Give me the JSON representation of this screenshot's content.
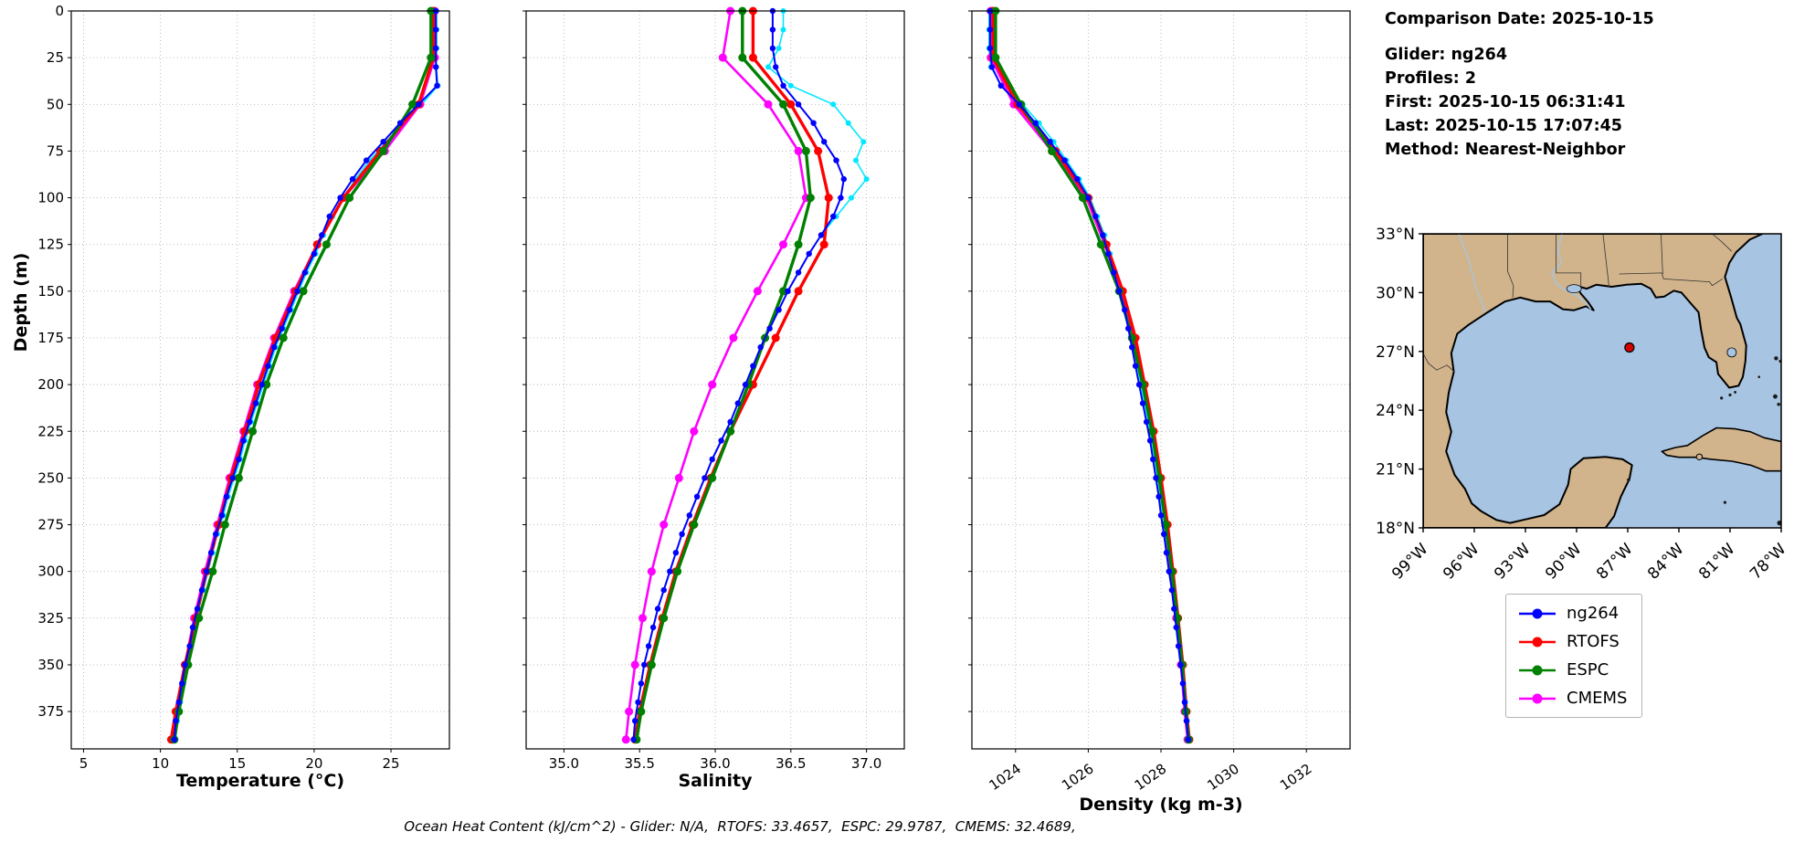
{
  "info": {
    "lines": [
      "Comparison Date: 2025-10-15",
      "Glider: ng264",
      "Profiles: 2",
      "First: 2025-10-15 06:31:41",
      "Last: 2025-10-15 17:07:45",
      "Method: Nearest-Neighbor"
    ]
  },
  "footer": {
    "caption": "Ocean Heat Content (kJ/cm^2) - Glider: N/A,  RTOFS: 33.4657,  ESPC: 29.9787,  CMEMS: 32.4689,"
  },
  "legend": {
    "items": [
      {
        "label": "ng264",
        "color": "#0000ff"
      },
      {
        "label": "RTOFS",
        "color": "#ff0000"
      },
      {
        "label": "ESPC",
        "color": "#008000"
      },
      {
        "label": "CMEMS",
        "color": "#ff00ff"
      }
    ]
  },
  "map": {
    "land_color": "#d2b48c",
    "ocean_color": "#a7c4e2",
    "river_color": "#9ec8e8",
    "lat_ticks": [
      {
        "v": 33,
        "label": "33°N"
      },
      {
        "v": 30,
        "label": "30°N"
      },
      {
        "v": 27,
        "label": "27°N"
      },
      {
        "v": 24,
        "label": "24°N"
      },
      {
        "v": 21,
        "label": "21°N"
      },
      {
        "v": 18,
        "label": "18°N"
      }
    ],
    "lon_ticks": [
      {
        "v": 99,
        "label": "99°W"
      },
      {
        "v": 96,
        "label": "96°W"
      },
      {
        "v": 93,
        "label": "93°W"
      },
      {
        "v": 90,
        "label": "90°W"
      },
      {
        "v": 87,
        "label": "87°W"
      },
      {
        "v": 84,
        "label": "84°W"
      },
      {
        "v": 81,
        "label": "81°W"
      },
      {
        "v": 78,
        "label": "78°W"
      }
    ],
    "marker": {
      "lon_w": 86.9,
      "lat": 27.2,
      "fill": "#d40000",
      "edge": "#000000"
    }
  },
  "chart_data": {
    "type": "line",
    "title": "",
    "ylabel": "Depth (m)",
    "ylim": [
      0,
      395
    ],
    "yticks": [
      0,
      25,
      50,
      75,
      100,
      125,
      150,
      175,
      200,
      225,
      250,
      275,
      300,
      325,
      350,
      375
    ],
    "grid": true,
    "panels": [
      {
        "key": "temperature",
        "xlabel": "Temperature (°C)",
        "xlim": [
          4.2,
          28.8
        ],
        "xticks": [
          5,
          10,
          15,
          20,
          25
        ],
        "xtick_labels": [
          "5",
          "10",
          "15",
          "20",
          "25"
        ],
        "rotate_ticks": false
      },
      {
        "key": "salinity",
        "xlabel": "Salinity",
        "xlim": [
          34.75,
          37.25
        ],
        "xticks": [
          35.0,
          35.5,
          36.0,
          36.5,
          37.0
        ],
        "xtick_labels": [
          "35.0",
          "35.5",
          "36.0",
          "36.5",
          "37.0"
        ],
        "rotate_ticks": false
      },
      {
        "key": "density",
        "xlabel": "Density (kg m-3)",
        "xlim": [
          1022.8,
          1033.2
        ],
        "xticks": [
          1024,
          1026,
          1028,
          1030,
          1032
        ],
        "xtick_labels": [
          "1024",
          "1026",
          "1028",
          "1030",
          "1032"
        ],
        "rotate_ticks": true
      }
    ],
    "series": [
      {
        "id": "ng264p2",
        "name": "ng264 (second profile)",
        "color": "#00e8ff",
        "line_width": 1.6,
        "marker_radius": 3.0,
        "depths": [
          0,
          10,
          20,
          30,
          40,
          50,
          60,
          70,
          80,
          90,
          100,
          110,
          120,
          130,
          140,
          150,
          160,
          170,
          180,
          190,
          200,
          210,
          220,
          230,
          240,
          250,
          260,
          270,
          280,
          290,
          300,
          310,
          320,
          330,
          340,
          350,
          360,
          370,
          380,
          390
        ],
        "temperature": [
          27.97,
          27.97,
          27.97,
          27.95,
          28.05,
          27.0,
          25.8,
          24.7,
          23.6,
          22.7,
          21.9,
          21.2,
          20.6,
          20.1,
          19.5,
          19.0,
          18.5,
          18.0,
          17.5,
          17.1,
          16.7,
          16.3,
          15.9,
          15.5,
          15.2,
          14.8,
          14.4,
          14.1,
          13.7,
          13.4,
          13.1,
          12.8,
          12.5,
          12.2,
          12.0,
          11.7,
          11.5,
          11.3,
          11.1,
          11.0
        ],
        "salinity": [
          36.45,
          36.45,
          36.42,
          36.35,
          36.5,
          36.78,
          36.88,
          36.98,
          36.93,
          37.0,
          36.9,
          36.8,
          36.7,
          36.62,
          36.55,
          36.48,
          36.42,
          36.36,
          36.3,
          36.25,
          36.2,
          36.15,
          36.1,
          36.04,
          35.98,
          35.93,
          35.88,
          35.83,
          35.78,
          35.74,
          35.7,
          35.66,
          35.62,
          35.59,
          35.56,
          35.53,
          35.51,
          35.49,
          35.47,
          35.46
        ],
        "density": [
          1023.27,
          1023.27,
          1023.27,
          1023.32,
          1023.62,
          1024.2,
          1024.65,
          1025.05,
          1025.4,
          1025.75,
          1026.05,
          1026.25,
          1026.45,
          1026.6,
          1026.75,
          1026.9,
          1027.05,
          1027.15,
          1027.25,
          1027.35,
          1027.45,
          1027.55,
          1027.65,
          1027.72,
          1027.8,
          1027.88,
          1027.96,
          1028.02,
          1028.1,
          1028.17,
          1028.24,
          1028.32,
          1028.38,
          1028.44,
          1028.5,
          1028.56,
          1028.62,
          1028.67,
          1028.72,
          1028.77
        ]
      },
      {
        "id": "cmems",
        "name": "CMEMS",
        "color": "#ff00ff",
        "line_width": 2.6,
        "marker_radius": 4.5,
        "depths": [
          0,
          25,
          50,
          75,
          100,
          125,
          150,
          175,
          200,
          225,
          250,
          275,
          300,
          325,
          350,
          375,
          390
        ],
        "temperature": [
          27.85,
          27.85,
          26.9,
          24.6,
          21.9,
          20.2,
          18.7,
          17.4,
          16.3,
          15.4,
          14.5,
          13.7,
          12.9,
          12.2,
          11.6,
          11.1,
          10.8
        ],
        "salinity": [
          36.1,
          36.05,
          36.35,
          36.55,
          36.6,
          36.45,
          36.28,
          36.12,
          35.98,
          35.86,
          35.76,
          35.66,
          35.58,
          35.52,
          35.47,
          35.43,
          35.41
        ],
        "density": [
          1023.32,
          1023.32,
          1023.95,
          1025.0,
          1025.95,
          1026.45,
          1026.9,
          1027.25,
          1027.5,
          1027.75,
          1027.95,
          1028.12,
          1028.27,
          1028.42,
          1028.55,
          1028.65,
          1028.73
        ]
      },
      {
        "id": "rtofs",
        "name": "RTOFS",
        "color": "#ff0000",
        "line_width": 3.4,
        "marker_radius": 4.5,
        "depths": [
          0,
          25,
          50,
          75,
          100,
          125,
          150,
          175,
          200,
          225,
          250,
          275,
          300,
          325,
          350,
          375,
          390
        ],
        "temperature": [
          27.75,
          27.75,
          26.8,
          24.3,
          21.9,
          20.2,
          18.8,
          17.5,
          16.4,
          15.5,
          14.6,
          13.8,
          13.0,
          12.3,
          11.6,
          11.0,
          10.7
        ],
        "salinity": [
          36.25,
          36.25,
          36.5,
          36.68,
          36.75,
          36.72,
          36.55,
          36.4,
          36.25,
          36.1,
          35.97,
          35.85,
          35.74,
          35.65,
          35.57,
          35.5,
          35.47
        ],
        "density": [
          1023.38,
          1023.38,
          1024.05,
          1025.1,
          1026.0,
          1026.5,
          1026.95,
          1027.3,
          1027.55,
          1027.8,
          1028.0,
          1028.18,
          1028.33,
          1028.47,
          1028.6,
          1028.7,
          1028.78
        ]
      },
      {
        "id": "espc",
        "name": "ESPC",
        "color": "#008000",
        "line_width": 3.4,
        "marker_radius": 4.5,
        "depths": [
          0,
          25,
          50,
          75,
          100,
          125,
          150,
          175,
          200,
          225,
          250,
          275,
          300,
          325,
          350,
          375,
          390
        ],
        "temperature": [
          27.6,
          27.6,
          26.4,
          24.5,
          22.3,
          20.8,
          19.3,
          18.0,
          16.9,
          16.0,
          15.1,
          14.2,
          13.4,
          12.5,
          11.8,
          11.2,
          10.9
        ],
        "salinity": [
          36.18,
          36.18,
          36.45,
          36.6,
          36.63,
          36.55,
          36.45,
          36.33,
          36.22,
          36.1,
          35.98,
          35.86,
          35.75,
          35.66,
          35.58,
          35.51,
          35.48
        ],
        "density": [
          1023.45,
          1023.45,
          1024.15,
          1025.0,
          1025.85,
          1026.35,
          1026.85,
          1027.2,
          1027.5,
          1027.75,
          1027.95,
          1028.13,
          1028.3,
          1028.45,
          1028.58,
          1028.68,
          1028.76
        ]
      },
      {
        "id": "ng264",
        "name": "ng264",
        "color": "#0000ff",
        "line_width": 2.0,
        "marker_radius": 3.2,
        "depths": [
          0,
          10,
          20,
          30,
          40,
          50,
          60,
          70,
          80,
          90,
          100,
          110,
          120,
          130,
          140,
          150,
          160,
          170,
          180,
          190,
          200,
          210,
          220,
          230,
          240,
          250,
          260,
          270,
          280,
          290,
          300,
          310,
          320,
          330,
          340,
          350,
          360,
          370,
          380,
          390
        ],
        "temperature": [
          27.92,
          27.92,
          27.92,
          27.92,
          28.0,
          26.8,
          25.6,
          24.5,
          23.4,
          22.5,
          21.7,
          21.0,
          20.5,
          20.0,
          19.4,
          18.9,
          18.4,
          17.9,
          17.4,
          17.0,
          16.6,
          16.2,
          15.8,
          15.4,
          15.1,
          14.7,
          14.3,
          14.0,
          13.6,
          13.3,
          13.0,
          12.7,
          12.4,
          12.1,
          11.9,
          11.6,
          11.4,
          11.2,
          11.0,
          10.9
        ],
        "salinity": [
          36.38,
          36.38,
          36.38,
          36.4,
          36.45,
          36.55,
          36.65,
          36.72,
          36.8,
          36.85,
          36.83,
          36.78,
          36.7,
          36.62,
          36.55,
          36.48,
          36.42,
          36.36,
          36.3,
          36.25,
          36.2,
          36.15,
          36.1,
          36.04,
          35.98,
          35.93,
          35.88,
          35.83,
          35.78,
          35.74,
          35.7,
          35.66,
          35.62,
          35.59,
          35.56,
          35.53,
          35.51,
          35.49,
          35.47,
          35.46
        ],
        "density": [
          1023.3,
          1023.3,
          1023.3,
          1023.35,
          1023.6,
          1024.1,
          1024.55,
          1024.95,
          1025.35,
          1025.7,
          1026.0,
          1026.2,
          1026.4,
          1026.55,
          1026.7,
          1026.85,
          1027.0,
          1027.1,
          1027.2,
          1027.3,
          1027.4,
          1027.5,
          1027.6,
          1027.7,
          1027.78,
          1027.86,
          1027.94,
          1028.0,
          1028.08,
          1028.15,
          1028.22,
          1028.3,
          1028.36,
          1028.42,
          1028.48,
          1028.54,
          1028.6,
          1028.65,
          1028.7,
          1028.75
        ]
      }
    ]
  }
}
